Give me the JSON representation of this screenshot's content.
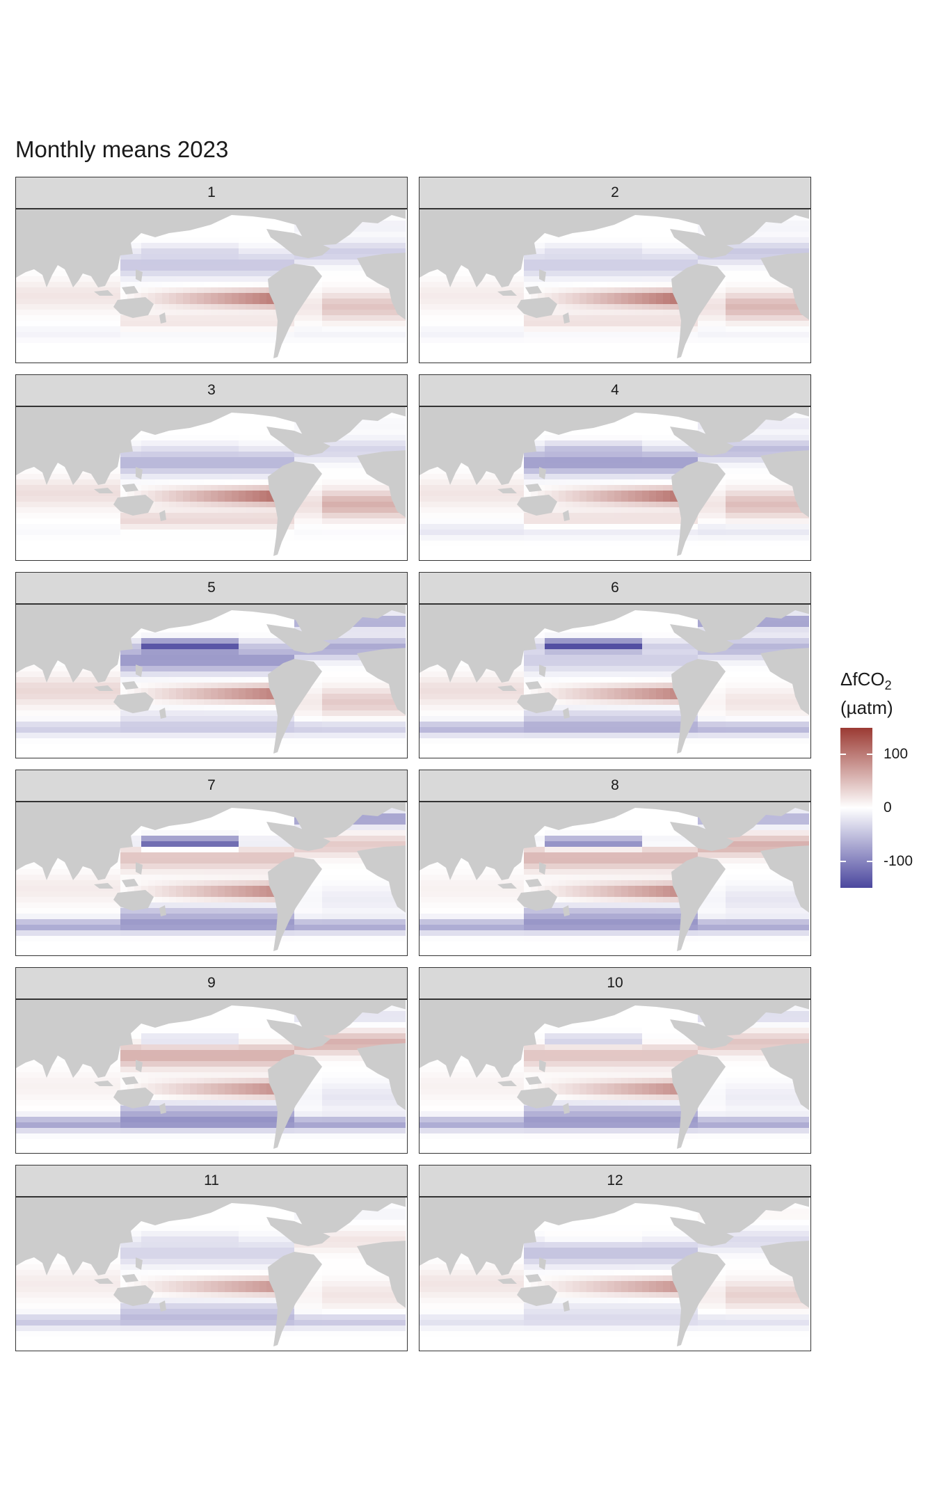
{
  "chart_data": {
    "type": "heatmap",
    "title": "Monthly means 2023",
    "facet_variable": "month",
    "panels": [
      {
        "label": "1",
        "eq_pacific": 120,
        "n_pacific": -45,
        "n_atlantic": -40,
        "s_atlantic": 45,
        "s_pacific": 20,
        "n_pacific_margin": -20,
        "s_ocean": -10,
        "indian": 20
      },
      {
        "label": "2",
        "eq_pacific": 125,
        "n_pacific": -40,
        "n_atlantic": -45,
        "s_atlantic": 55,
        "s_pacific": 25,
        "n_pacific_margin": -15,
        "s_ocean": -10,
        "indian": 15
      },
      {
        "label": "3",
        "eq_pacific": 130,
        "n_pacific": -60,
        "n_atlantic": -35,
        "s_atlantic": 60,
        "s_pacific": 30,
        "n_pacific_margin": -10,
        "s_ocean": -5,
        "indian": 25
      },
      {
        "label": "4",
        "eq_pacific": 125,
        "n_pacific": -80,
        "n_atlantic": -55,
        "s_atlantic": 50,
        "s_pacific": 25,
        "n_pacific_margin": -30,
        "s_ocean": -20,
        "indian": 20
      },
      {
        "label": "5",
        "eq_pacific": 115,
        "n_pacific": -85,
        "n_atlantic": -70,
        "s_atlantic": 40,
        "s_pacific": -20,
        "n_pacific_margin": -120,
        "s_ocean": -40,
        "indian": 30
      },
      {
        "label": "6",
        "eq_pacific": 110,
        "n_pacific": -40,
        "n_atlantic": -60,
        "s_atlantic": 20,
        "s_pacific": -35,
        "n_pacific_margin": -140,
        "s_ocean": -60,
        "indian": 25
      },
      {
        "label": "7",
        "eq_pacific": 105,
        "n_pacific": 45,
        "n_atlantic": 40,
        "s_atlantic": -15,
        "s_pacific": -55,
        "n_pacific_margin": -140,
        "s_ocean": -70,
        "indian": 15
      },
      {
        "label": "8",
        "eq_pacific": 105,
        "n_pacific": 55,
        "n_atlantic": 60,
        "s_atlantic": -20,
        "s_pacific": -60,
        "n_pacific_margin": -110,
        "s_ocean": -70,
        "indian": 10
      },
      {
        "label": "9",
        "eq_pacific": 100,
        "n_pacific": 60,
        "n_atlantic": 60,
        "s_atlantic": -20,
        "s_pacific": -60,
        "n_pacific_margin": -40,
        "s_ocean": -75,
        "indian": 10
      },
      {
        "label": "10",
        "eq_pacific": 100,
        "n_pacific": 45,
        "n_atlantic": 45,
        "s_atlantic": -15,
        "s_pacific": -55,
        "n_pacific_margin": -50,
        "s_ocean": -70,
        "indian": 10
      },
      {
        "label": "11",
        "eq_pacific": 95,
        "n_pacific": -35,
        "n_atlantic": 20,
        "s_atlantic": 20,
        "s_pacific": -40,
        "n_pacific_margin": -15,
        "s_ocean": -45,
        "indian": 15
      },
      {
        "label": "12",
        "eq_pacific": 95,
        "n_pacific": -50,
        "n_atlantic": -30,
        "s_atlantic": 35,
        "s_pacific": -20,
        "n_pacific_margin": 10,
        "s_ocean": -25,
        "indian": 20
      }
    ],
    "legend": {
      "title": "ΔfCO",
      "title_sub": "2",
      "unit": "(µatm)",
      "limits": [
        -150,
        150
      ],
      "ticks": [
        100,
        0,
        -100
      ],
      "tick_labels": [
        "100",
        "0",
        "-100"
      ],
      "colors": {
        "low": "#4b479e",
        "mid": "#ffffff",
        "high": "#9b3a33"
      }
    },
    "land_color": "#cccccc"
  }
}
